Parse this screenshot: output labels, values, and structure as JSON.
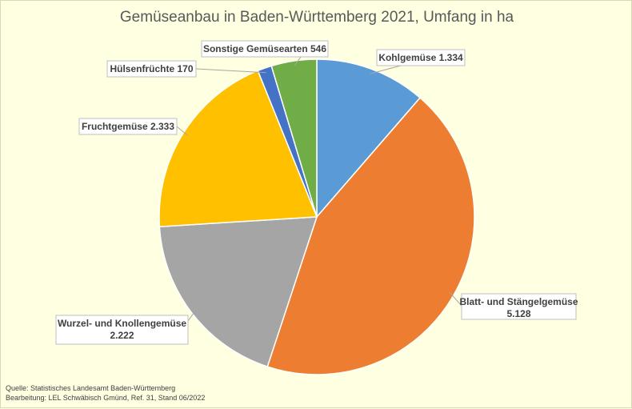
{
  "chart_data": {
    "type": "pie",
    "title": "Gemüseanbau in Baden-Württemberg 2021, Umfang in ha",
    "slices": [
      {
        "name": "Kohlgemüse",
        "value_label": "1.334",
        "value": 1334,
        "color": "#5B9BD5"
      },
      {
        "name": "Blatt- und Stängelgemüse",
        "value_label": "5.128",
        "value": 5128,
        "color": "#ED7D31"
      },
      {
        "name": "Wurzel- und Knollengemüse",
        "value_label": "2.222",
        "value": 2222,
        "color": "#A5A5A5"
      },
      {
        "name": "Fruchtgemüse",
        "value_label": "2.333",
        "value": 2333,
        "color": "#FFC000"
      },
      {
        "name": "Hülsenfrüchte",
        "value_label": "170",
        "value": 170,
        "color": "#4472C4"
      },
      {
        "name": "Sonstige Gemüsearten",
        "value_label": "546",
        "value": 546,
        "color": "#70AD47"
      }
    ],
    "legend": "none"
  },
  "footer": {
    "line1": "Quelle: Statistisches Landesamt Baden-Württemberg",
    "line2": "Bearbeitung: LEL Schwäbisch Gmünd, Ref. 31, Stand 06/2022"
  }
}
